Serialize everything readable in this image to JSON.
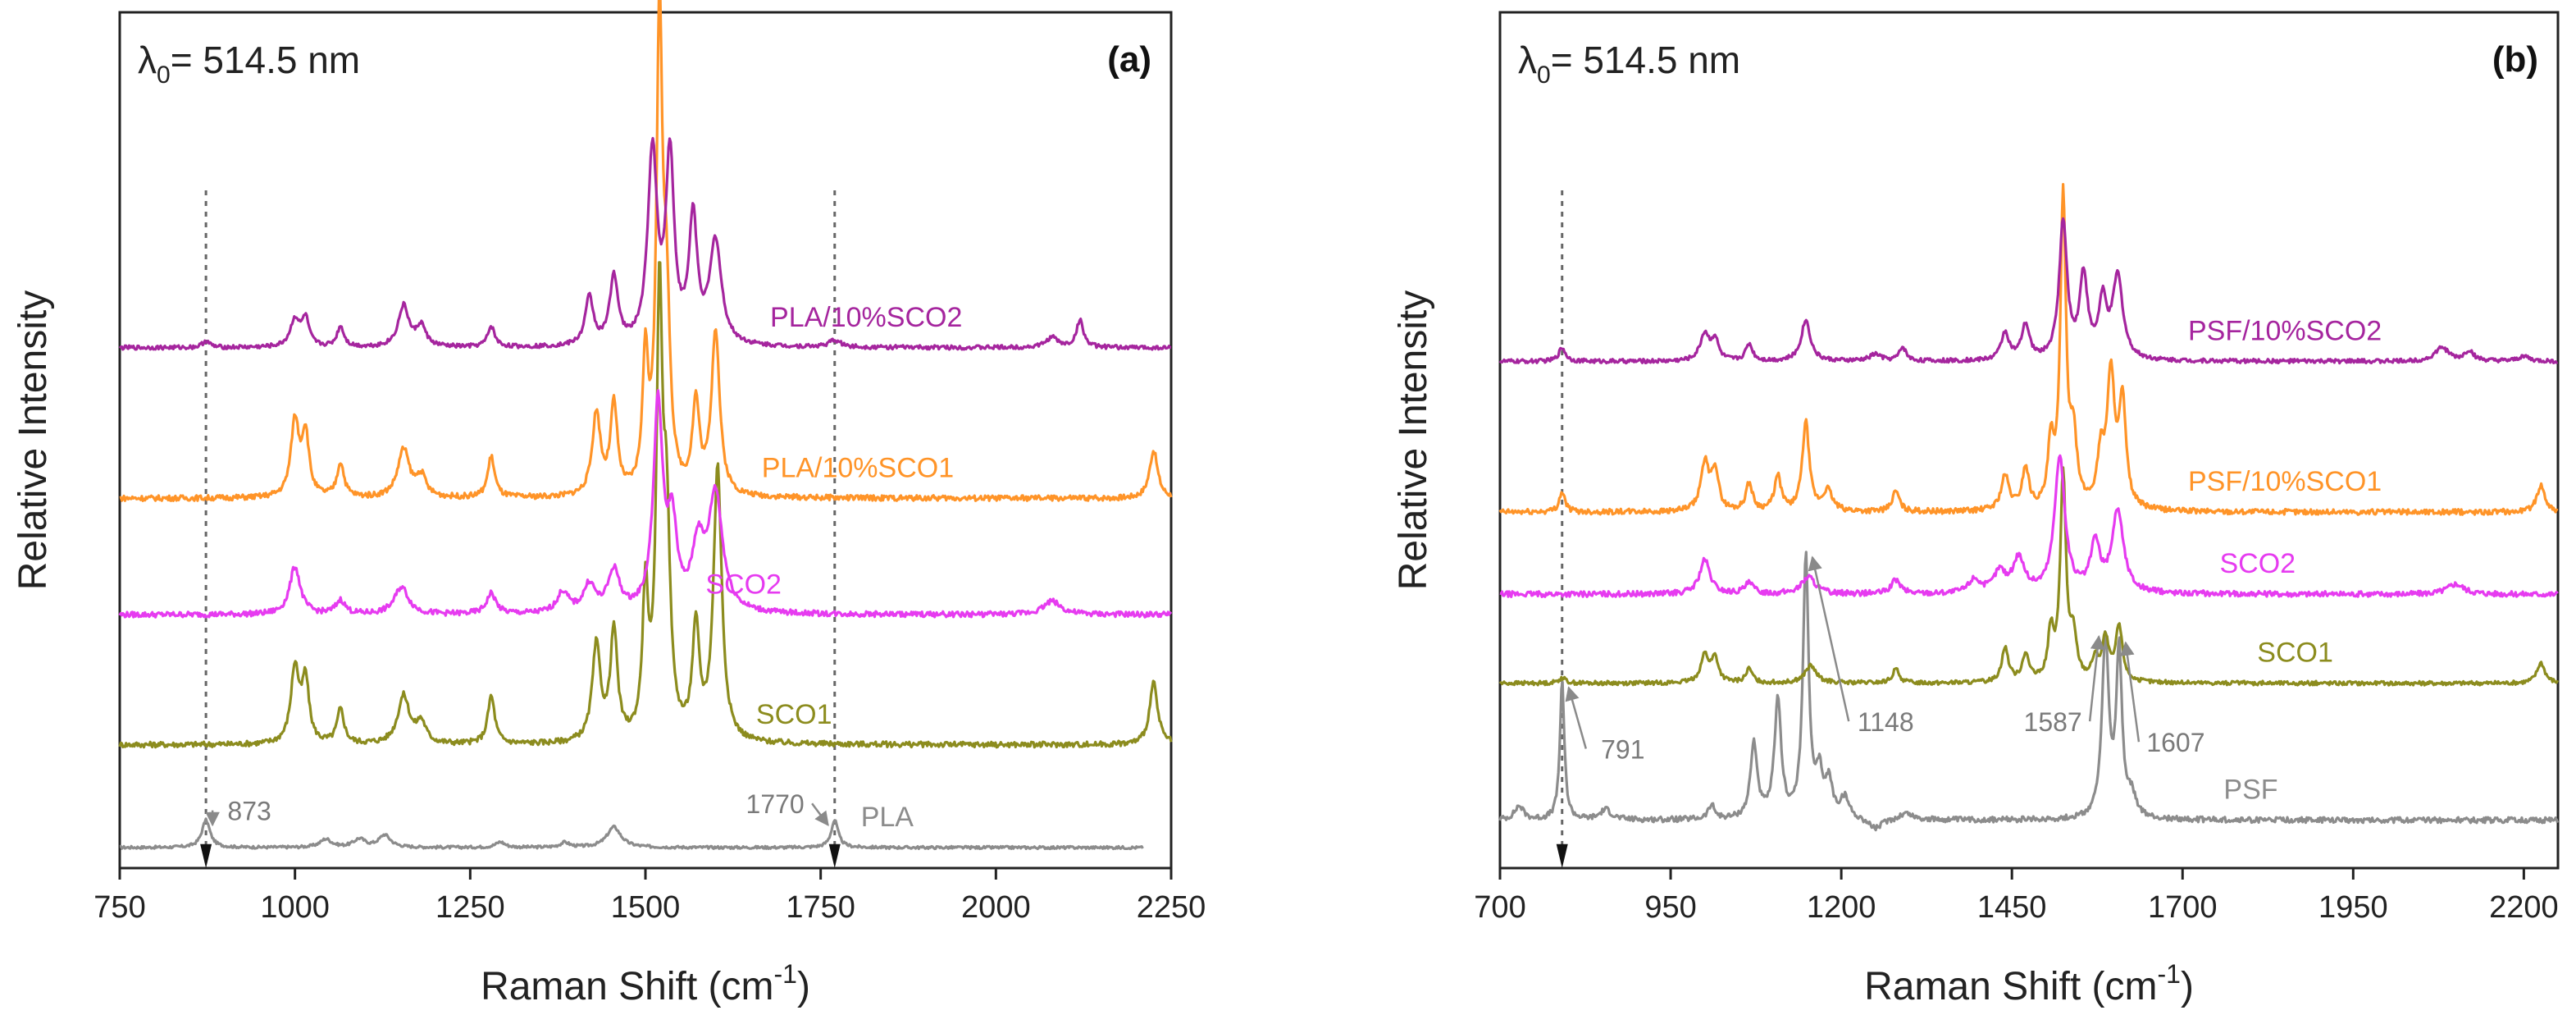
{
  "chart_data": [
    {
      "type": "line",
      "panel_label": "(a)",
      "excitation": {
        "symbol": "λ",
        "subscript": "0",
        "text": "= 514.5 nm"
      },
      "xlabel": {
        "text": "Raman Shift (cm",
        "superscript": "-1",
        "suffix": ")"
      },
      "ylabel": "Relative Intensity",
      "xlim": [
        750,
        2250
      ],
      "xticks": [
        "750",
        "1000",
        "1250",
        "1500",
        "1750",
        "2000",
        "2250"
      ],
      "xtick_values": [
        750,
        1000,
        1250,
        1500,
        1750,
        2000,
        2250
      ],
      "marker_lines": [
        873,
        1770
      ],
      "series": [
        {
          "name": "PLA",
          "color": "#8c8c8c",
          "baseline": 0.03,
          "noise": 0.002,
          "x_start": 750,
          "x_end": 2210,
          "label_x": 1845,
          "peaks": [
            [
              873,
              0.04,
              7
            ],
            [
              1044,
              0.012,
              10
            ],
            [
              1092,
              0.012,
              10
            ],
            [
              1128,
              0.018,
              10
            ],
            [
              1293,
              0.008,
              8
            ],
            [
              1385,
              0.007,
              8
            ],
            [
              1455,
              0.03,
              12
            ],
            [
              1770,
              0.04,
              6
            ]
          ]
        },
        {
          "name": "SCO1",
          "color": "#8c8c1e",
          "baseline": 0.18,
          "noise": 0.004,
          "x_start": 750,
          "x_end": 2250,
          "label_x": 1712,
          "peaks": [
            [
              1000,
              0.11,
              7
            ],
            [
              1015,
              0.09,
              6
            ],
            [
              1065,
              0.05,
              6
            ],
            [
              1155,
              0.07,
              10
            ],
            [
              1180,
              0.03,
              8
            ],
            [
              1280,
              0.07,
              6
            ],
            [
              1430,
              0.14,
              7
            ],
            [
              1455,
              0.16,
              6
            ],
            [
              1500,
              0.21,
              5
            ],
            [
              1520,
              0.62,
              5
            ],
            [
              1530,
              0.3,
              6
            ],
            [
              1572,
              0.16,
              6
            ],
            [
              1603,
              0.4,
              7
            ],
            [
              2225,
              0.09,
              7
            ]
          ]
        },
        {
          "name": "SCO2",
          "color": "#e63bf0",
          "baseline": 0.37,
          "noise": 0.004,
          "x_start": 750,
          "x_end": 2250,
          "label_x": 1640,
          "peaks": [
            [
              1000,
              0.07,
              9
            ],
            [
              1065,
              0.02,
              8
            ],
            [
              1152,
              0.04,
              12
            ],
            [
              1280,
              0.03,
              8
            ],
            [
              1382,
              0.03,
              10
            ],
            [
              1420,
              0.04,
              10
            ],
            [
              1455,
              0.06,
              10
            ],
            [
              1518,
              0.3,
              8
            ],
            [
              1538,
              0.12,
              8
            ],
            [
              1575,
              0.09,
              10
            ],
            [
              1600,
              0.17,
              12
            ],
            [
              2080,
              0.02,
              15
            ]
          ]
        },
        {
          "name": "PLA/10%SCO1",
          "color": "#ff9428",
          "baseline": 0.54,
          "noise": 0.004,
          "x_start": 750,
          "x_end": 2250,
          "label_x": 1803,
          "peaks": [
            [
              1000,
              0.11,
              7
            ],
            [
              1015,
              0.09,
              6
            ],
            [
              1065,
              0.05,
              6
            ],
            [
              1155,
              0.07,
              10
            ],
            [
              1180,
              0.03,
              8
            ],
            [
              1280,
              0.06,
              6
            ],
            [
              1430,
              0.12,
              7
            ],
            [
              1455,
              0.13,
              6
            ],
            [
              1500,
              0.19,
              5
            ],
            [
              1520,
              0.68,
              5
            ],
            [
              1530,
              0.25,
              6
            ],
            [
              1572,
              0.13,
              6
            ],
            [
              1600,
              0.24,
              7
            ],
            [
              2225,
              0.07,
              7
            ]
          ]
        },
        {
          "name": "PLA/10%SCO2",
          "color": "#a5259e",
          "baseline": 0.76,
          "noise": 0.003,
          "x_start": 750,
          "x_end": 2250,
          "label_x": 1815,
          "peaks": [
            [
              873,
              0.01,
              6
            ],
            [
              1000,
              0.04,
              8
            ],
            [
              1015,
              0.04,
              6
            ],
            [
              1065,
              0.03,
              6
            ],
            [
              1155,
              0.06,
              9
            ],
            [
              1180,
              0.03,
              8
            ],
            [
              1280,
              0.03,
              6
            ],
            [
              1420,
              0.07,
              7
            ],
            [
              1455,
              0.1,
              7
            ],
            [
              1510,
              0.28,
              8
            ],
            [
              1535,
              0.27,
              7
            ],
            [
              1568,
              0.18,
              7
            ],
            [
              1600,
              0.15,
              10
            ],
            [
              1770,
              0.01,
              10
            ],
            [
              2080,
              0.015,
              10
            ],
            [
              2120,
              0.04,
              6
            ]
          ]
        }
      ],
      "annotations": [
        {
          "text": "873",
          "x": 873,
          "label_x": 935,
          "label_y": 0.07
        },
        {
          "text": "1770",
          "x": 1770,
          "label_x": 1685,
          "label_y": 0.08
        }
      ]
    },
    {
      "type": "line",
      "panel_label": "(b)",
      "excitation": {
        "symbol": "λ",
        "subscript": "0",
        "text": "= 514.5 nm"
      },
      "xlabel": {
        "text": "Raman Shift (cm",
        "superscript": "-1",
        "suffix": ")"
      },
      "ylabel": "Relative Intensity",
      "xlim": [
        700,
        2250
      ],
      "xticks": [
        "700",
        "950",
        "1200",
        "1450",
        "1700",
        "1950",
        "2200"
      ],
      "xtick_values": [
        700,
        950,
        1200,
        1450,
        1700,
        1950,
        2200
      ],
      "marker_lines": [
        791
      ],
      "series": [
        {
          "name": "PSF",
          "color": "#8c8c8c",
          "baseline": 0.07,
          "noise": 0.004,
          "x_start": 700,
          "x_end": 2250,
          "label_x": 1800,
          "peaks": [
            [
              728,
              0.02,
              8
            ],
            [
              791,
              0.2,
              4
            ],
            [
              855,
              0.015,
              10
            ],
            [
              1010,
              0.02,
              6
            ],
            [
              1072,
              0.11,
              6
            ],
            [
              1107,
              0.17,
              6
            ],
            [
              1148,
              0.38,
              5
            ],
            [
              1168,
              0.06,
              6
            ],
            [
              1182,
              0.05,
              6
            ],
            [
              1205,
              0.03,
              8
            ],
            [
              1250,
              -0.015,
              12
            ],
            [
              1295,
              0.01,
              12
            ],
            [
              1587,
              0.26,
              6
            ],
            [
              1607,
              0.24,
              5
            ],
            [
              1625,
              0.03,
              8
            ]
          ]
        },
        {
          "name": "SCO1",
          "color": "#8c8c1e",
          "baseline": 0.27,
          "noise": 0.003,
          "x_start": 700,
          "x_end": 2250,
          "label_x": 1865,
          "peaks": [
            [
              791,
              0.008,
              6
            ],
            [
              1000,
              0.04,
              7
            ],
            [
              1015,
              0.035,
              6
            ],
            [
              1065,
              0.02,
              6
            ],
            [
              1155,
              0.025,
              10
            ],
            [
              1280,
              0.02,
              6
            ],
            [
              1440,
              0.05,
              6
            ],
            [
              1470,
              0.04,
              6
            ],
            [
              1507,
              0.07,
              5
            ],
            [
              1525,
              0.3,
              5
            ],
            [
              1540,
              0.06,
              6
            ],
            [
              1572,
              0.03,
              6
            ],
            [
              1587,
              0.06,
              6
            ],
            [
              1607,
              0.08,
              6
            ],
            [
              2225,
              0.03,
              7
            ]
          ]
        },
        {
          "name": "SCO2",
          "color": "#e63bf0",
          "baseline": 0.4,
          "noise": 0.004,
          "x_start": 700,
          "x_end": 2250,
          "label_x": 1810,
          "peaks": [
            [
              1000,
              0.05,
              9
            ],
            [
              1065,
              0.015,
              8
            ],
            [
              1152,
              0.025,
              12
            ],
            [
              1280,
              0.02,
              8
            ],
            [
              1395,
              0.02,
              10
            ],
            [
              1432,
              0.03,
              10
            ],
            [
              1460,
              0.05,
              10
            ],
            [
              1520,
              0.2,
              9
            ],
            [
              1572,
              0.07,
              8
            ],
            [
              1605,
              0.12,
              10
            ],
            [
              2100,
              0.015,
              15
            ]
          ]
        },
        {
          "name": "PSF/10%SCO1",
          "color": "#ff9428",
          "baseline": 0.52,
          "noise": 0.004,
          "x_start": 700,
          "x_end": 2250,
          "label_x": 1850,
          "peaks": [
            [
              791,
              0.03,
              5
            ],
            [
              1000,
              0.07,
              7
            ],
            [
              1015,
              0.06,
              6
            ],
            [
              1065,
              0.04,
              6
            ],
            [
              1107,
              0.05,
              6
            ],
            [
              1148,
              0.13,
              6
            ],
            [
              1180,
              0.03,
              8
            ],
            [
              1280,
              0.03,
              6
            ],
            [
              1440,
              0.05,
              7
            ],
            [
              1470,
              0.06,
              6
            ],
            [
              1507,
              0.09,
              5
            ],
            [
              1525,
              0.45,
              5
            ],
            [
              1540,
              0.1,
              6
            ],
            [
              1580,
              0.07,
              6
            ],
            [
              1595,
              0.19,
              7
            ],
            [
              1612,
              0.15,
              6
            ],
            [
              2225,
              0.04,
              7
            ]
          ]
        },
        {
          "name": "PSF/10%SCO2",
          "color": "#a5259e",
          "baseline": 0.74,
          "noise": 0.003,
          "x_start": 700,
          "x_end": 2250,
          "label_x": 1850,
          "peaks": [
            [
              791,
              0.02,
              6
            ],
            [
              1000,
              0.04,
              8
            ],
            [
              1015,
              0.03,
              6
            ],
            [
              1065,
              0.025,
              6
            ],
            [
              1148,
              0.06,
              8
            ],
            [
              1250,
              0.01,
              10
            ],
            [
              1290,
              0.02,
              6
            ],
            [
              1440,
              0.04,
              7
            ],
            [
              1470,
              0.05,
              7
            ],
            [
              1525,
              0.2,
              7
            ],
            [
              1555,
              0.12,
              7
            ],
            [
              1583,
              0.08,
              7
            ],
            [
              1605,
              0.12,
              9
            ],
            [
              2080,
              0.02,
              12
            ],
            [
              2120,
              0.015,
              8
            ],
            [
              2200,
              0.008,
              8
            ]
          ]
        }
      ],
      "annotations": [
        {
          "text": "791",
          "x": 791,
          "label_x": 880,
          "label_y": 0.16
        },
        {
          "text": "1148",
          "x": 1148,
          "label_x": 1265,
          "label_y": 0.2
        },
        {
          "text": "1587",
          "x": 1587,
          "label_x": 1510,
          "label_y": 0.2
        },
        {
          "text": "1607",
          "x": 1607,
          "label_x": 1690,
          "label_y": 0.17
        }
      ]
    }
  ]
}
